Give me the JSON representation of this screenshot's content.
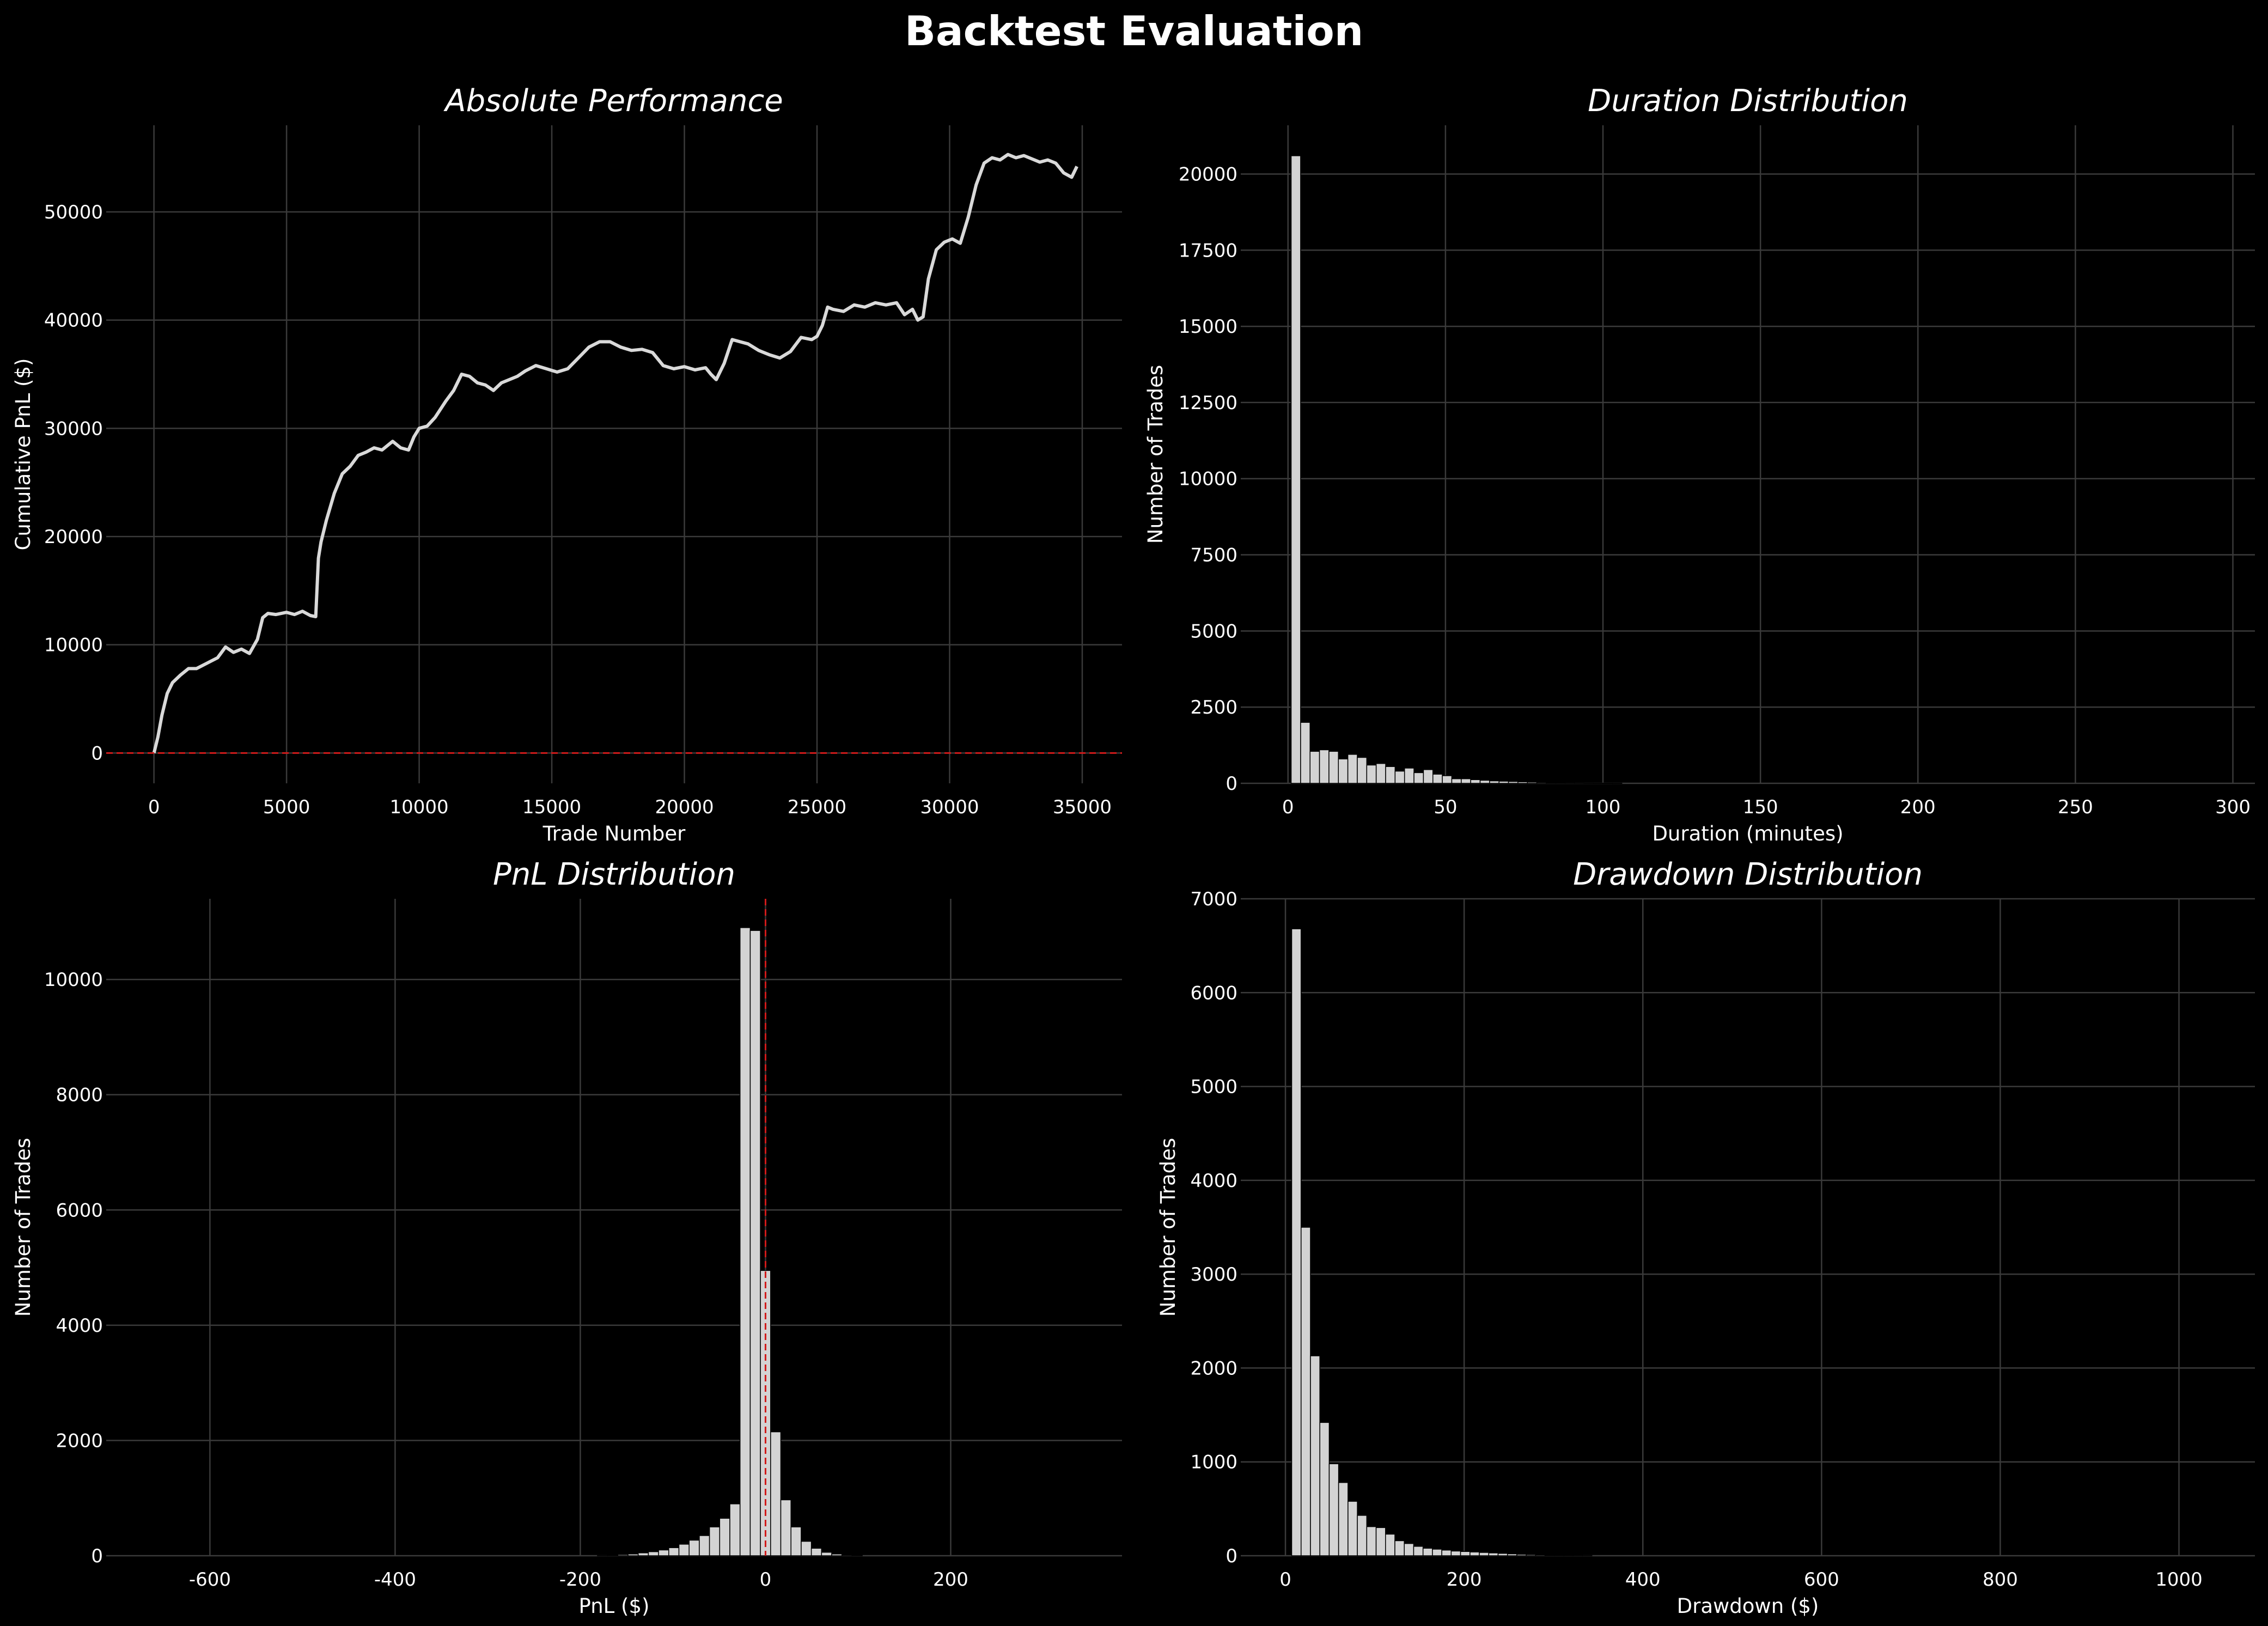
{
  "figure": {
    "title": "Backtest Evaluation",
    "background": "#000000",
    "bar_color": "#d3d3d3",
    "line_color": "#d9d9d9",
    "ref_line_color": "#d11a1a"
  },
  "chart_data": [
    {
      "type": "line",
      "title": "Absolute Performance",
      "xlabel": "Trade Number",
      "ylabel": "Cumulative PnL ($)",
      "xlim": [
        -1800,
        36500
      ],
      "ylim": [
        -2800,
        58000
      ],
      "xticks": [
        0,
        5000,
        10000,
        15000,
        20000,
        25000,
        30000,
        35000
      ],
      "yticks": [
        0,
        10000,
        20000,
        30000,
        40000,
        50000
      ],
      "grid": true,
      "ref_line": {
        "axis": "y",
        "value": 0
      },
      "series": [
        {
          "x": [
            0,
            150,
            300,
            500,
            700,
            1000,
            1300,
            1600,
            2000,
            2400,
            2700,
            3000,
            3300,
            3600,
            3900,
            4100,
            4300,
            4600,
            5000,
            5300,
            5600,
            5900,
            6100,
            6200,
            6300,
            6500,
            6800,
            7100,
            7400,
            7700,
            8000,
            8300,
            8600,
            9000,
            9300,
            9600,
            9800,
            10000,
            10300,
            10600,
            11000,
            11300,
            11600,
            11900,
            12200,
            12500,
            12800,
            13100,
            13400,
            13700,
            14000,
            14400,
            14800,
            15200,
            15600,
            16000,
            16400,
            16800,
            17200,
            17600,
            18000,
            18400,
            18800,
            19200,
            19600,
            20000,
            20400,
            20800,
            21000,
            21200,
            21500,
            21800,
            22100,
            22400,
            22800,
            23200,
            23600,
            24000,
            24400,
            24800,
            25000,
            25200,
            25400,
            25600,
            26000,
            26400,
            26800,
            27200,
            27600,
            28000,
            28300,
            28600,
            28800,
            29000,
            29200,
            29500,
            29800,
            30100,
            30400,
            30700,
            31000,
            31300,
            31600,
            31900,
            32200,
            32500,
            32800,
            33100,
            33400,
            33700,
            34000,
            34300,
            34600,
            34800
          ],
          "y": [
            0,
            1500,
            3500,
            5500,
            6500,
            7200,
            7800,
            7800,
            8300,
            8800,
            9800,
            9300,
            9600,
            9200,
            10500,
            12500,
            12900,
            12800,
            13000,
            12800,
            13100,
            12700,
            12600,
            18000,
            19500,
            21500,
            24000,
            25800,
            26500,
            27500,
            27800,
            28200,
            28000,
            28800,
            28200,
            28000,
            29200,
            30000,
            30200,
            31000,
            32500,
            33500,
            35000,
            34800,
            34200,
            34000,
            33500,
            34200,
            34500,
            34800,
            35300,
            35800,
            35500,
            35200,
            35500,
            36500,
            37500,
            38000,
            38000,
            37500,
            37200,
            37300,
            37000,
            35800,
            35500,
            35700,
            35400,
            35600,
            35000,
            34500,
            36000,
            38200,
            38000,
            37800,
            37200,
            36800,
            36500,
            37100,
            38400,
            38200,
            38500,
            39500,
            41200,
            41000,
            40800,
            41400,
            41200,
            41600,
            41400,
            41600,
            40500,
            41000,
            40000,
            40300,
            43800,
            46500,
            47200,
            47500,
            47100,
            49500,
            52500,
            54500,
            55000,
            54800,
            55300,
            55000,
            55200,
            54900,
            54600,
            54800,
            54500,
            53600,
            53200,
            54200
          ]
        }
      ]
    },
    {
      "type": "bar",
      "title": "Duration Distribution",
      "xlabel": "Duration (minutes)",
      "ylabel": "Number of Trades",
      "xlim": [
        -15,
        307
      ],
      "ylim": [
        0,
        21600
      ],
      "xticks": [
        0,
        50,
        100,
        150,
        200,
        250,
        300
      ],
      "yticks": [
        0,
        2500,
        5000,
        7500,
        10000,
        12500,
        15000,
        17500,
        20000
      ],
      "grid": true,
      "bin_width": 3,
      "bin_start": 1,
      "values": [
        20600,
        2000,
        1050,
        1100,
        1050,
        800,
        950,
        850,
        600,
        650,
        550,
        400,
        500,
        350,
        450,
        300,
        250,
        150,
        150,
        120,
        100,
        80,
        70,
        60,
        50,
        40,
        30,
        20,
        15,
        10,
        8,
        6,
        5,
        4,
        3
      ]
    },
    {
      "type": "bar",
      "title": "PnL Distribution",
      "xlabel": "PnL ($)",
      "ylabel": "Number of Trades",
      "xlim": [
        -712,
        385
      ],
      "ylim": [
        0,
        11400
      ],
      "xticks": [
        -600,
        -400,
        -200,
        0,
        200
      ],
      "yticks": [
        0,
        2000,
        4000,
        6000,
        8000,
        10000
      ],
      "grid": true,
      "ref_line": {
        "axis": "x",
        "value": 0
      },
      "bin_width": 11,
      "bin_start": -181.5,
      "values": [
        5,
        10,
        20,
        30,
        50,
        70,
        100,
        140,
        200,
        270,
        350,
        500,
        650,
        900,
        10900,
        10850,
        4950,
        2150,
        970,
        500,
        250,
        130,
        60,
        30,
        15,
        8
      ]
    },
    {
      "type": "bar",
      "title": "Drawdown Distribution",
      "xlabel": "Drawdown ($)",
      "ylabel": "Number of Trades",
      "xlim": [
        -50,
        1085
      ],
      "ylim": [
        0,
        7000
      ],
      "xticks": [
        0,
        200,
        400,
        600,
        800,
        1000
      ],
      "yticks": [
        0,
        1000,
        2000,
        3000,
        4000,
        5000,
        6000,
        7000
      ],
      "grid": true,
      "bin_width": 10.5,
      "bin_start": 7,
      "values": [
        6680,
        3500,
        2130,
        1420,
        980,
        780,
        580,
        430,
        310,
        300,
        230,
        160,
        130,
        100,
        80,
        70,
        60,
        50,
        45,
        40,
        35,
        30,
        25,
        20,
        15,
        12,
        10,
        8,
        6,
        5,
        4,
        3
      ]
    }
  ]
}
